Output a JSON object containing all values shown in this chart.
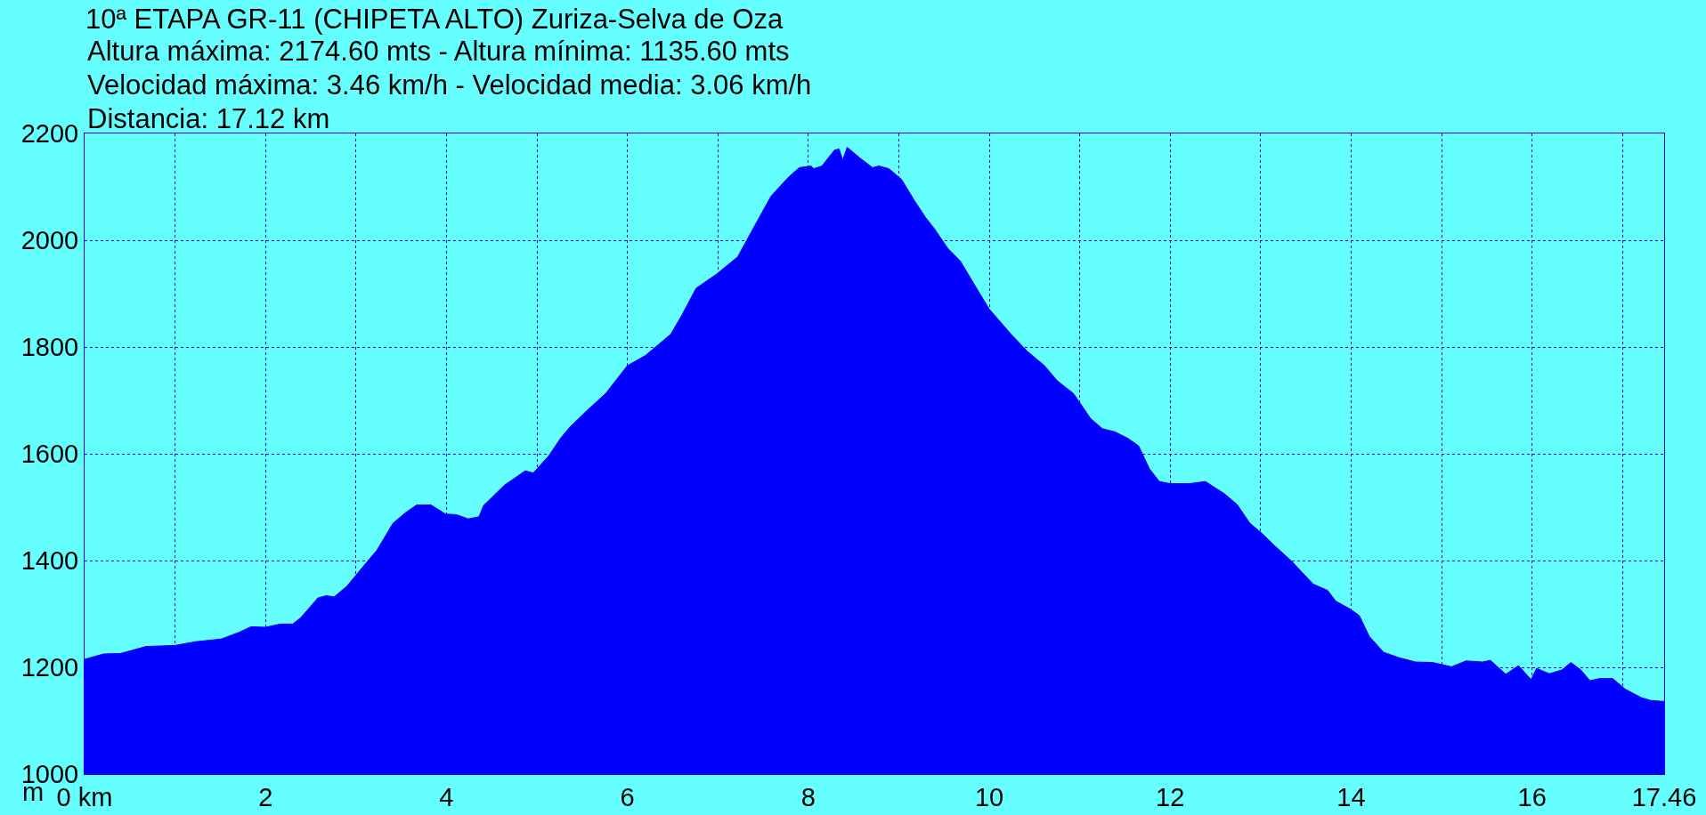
{
  "chart_data": {
    "type": "area",
    "title": "10ª ETAPA GR-11 (CHIPETA ALTO) Zuriza-Selva de Oza",
    "subtitle": "Altura máxima: 2174.60 mts - Altura mínima: 1135.60 mts\nVelocidad máxima: 3.46 km/h - Velocidad media: 3.06 km/h\nDistancia: 17.12 km",
    "ylabel": "m",
    "x": [
      0,
      0.21,
      0.4,
      0.68,
      1.0,
      1.23,
      1.51,
      1.7,
      1.84,
      2.0,
      2.16,
      2.3,
      2.39,
      2.58,
      2.67,
      2.76,
      2.9,
      3.09,
      3.23,
      3.41,
      3.55,
      3.67,
      3.83,
      3.99,
      4.11,
      4.24,
      4.36,
      4.41,
      4.64,
      4.87,
      4.96,
      5.13,
      5.27,
      5.37,
      5.56,
      5.76,
      6.0,
      6.2,
      6.48,
      6.6,
      6.76,
      6.99,
      7.22,
      7.41,
      7.59,
      7.78,
      7.9,
      8.03,
      8.06,
      8.15,
      8.29,
      8.34,
      8.38,
      8.43,
      8.57,
      8.71,
      8.78,
      8.89,
      9.03,
      9.17,
      9.29,
      9.4,
      9.54,
      9.68,
      9.86,
      10.0,
      10.24,
      10.42,
      10.61,
      10.75,
      10.93,
      11.12,
      11.25,
      11.39,
      11.53,
      11.65,
      11.77,
      11.88,
      12.0,
      12.21,
      12.39,
      12.49,
      12.6,
      12.74,
      12.88,
      13.02,
      13.14,
      13.34,
      13.58,
      13.74,
      13.83,
      13.99,
      14.09,
      14.2,
      14.36,
      14.53,
      14.71,
      14.9,
      15.11,
      15.27,
      15.45,
      15.54,
      15.71,
      15.85,
      15.99,
      16.05,
      16.19,
      16.33,
      16.43,
      16.54,
      16.64,
      16.75,
      16.89,
      17.03,
      17.21,
      17.31,
      17.46
    ],
    "series": [
      {
        "color": "#0000ff",
        "values": [
          1215,
          1225,
          1226,
          1239,
          1241,
          1248,
          1253,
          1265,
          1276,
          1275,
          1281,
          1281,
          1293,
          1330,
          1334,
          1332,
          1352,
          1391,
          1419,
          1470,
          1490,
          1504,
          1504,
          1487,
          1486,
          1478,
          1482,
          1503,
          1541,
          1568,
          1564,
          1596,
          1631,
          1651,
          1682,
          1713,
          1765,
          1784,
          1824,
          1859,
          1910,
          1937,
          1969,
          2028,
          2083,
          2118,
          2136,
          2139,
          2134,
          2139,
          2169,
          2171,
          2150,
          2174,
          2154,
          2136,
          2139,
          2134,
          2114,
          2075,
          2044,
          2020,
          1985,
          1961,
          1910,
          1871,
          1824,
          1792,
          1765,
          1737,
          1713,
          1666,
          1647,
          1641,
          1629,
          1615,
          1572,
          1548,
          1544,
          1544,
          1548,
          1537,
          1525,
          1505,
          1470,
          1450,
          1430,
          1399,
          1356,
          1344,
          1324,
          1309,
          1297,
          1258,
          1228,
          1218,
          1210,
          1209,
          1201,
          1212,
          1210,
          1213,
          1187,
          1203,
          1177,
          1198,
          1188,
          1195,
          1209,
          1195,
          1175,
          1179,
          1179,
          1159,
          1143,
          1138,
          1136
        ]
      }
    ],
    "xlim": [
      0,
      17.46
    ],
    "xticks": [
      {
        "value": 0,
        "label": "0 km"
      },
      {
        "value": 1,
        "label": null
      },
      2,
      {
        "value": 3,
        "label": null
      },
      4,
      {
        "value": 5,
        "label": null
      },
      6,
      {
        "value": 7,
        "label": null
      },
      8,
      {
        "value": 9,
        "label": null
      },
      10,
      {
        "value": 11,
        "label": null
      },
      12,
      {
        "value": 13,
        "label": null
      },
      14,
      {
        "value": 15,
        "label": null
      },
      16,
      {
        "value": 17,
        "label": null
      },
      17.46
    ],
    "ylim": [
      1000,
      2200
    ],
    "yticks": [
      1000,
      1200,
      1400,
      1600,
      1800,
      2000,
      2200
    ],
    "grid": true
  }
}
